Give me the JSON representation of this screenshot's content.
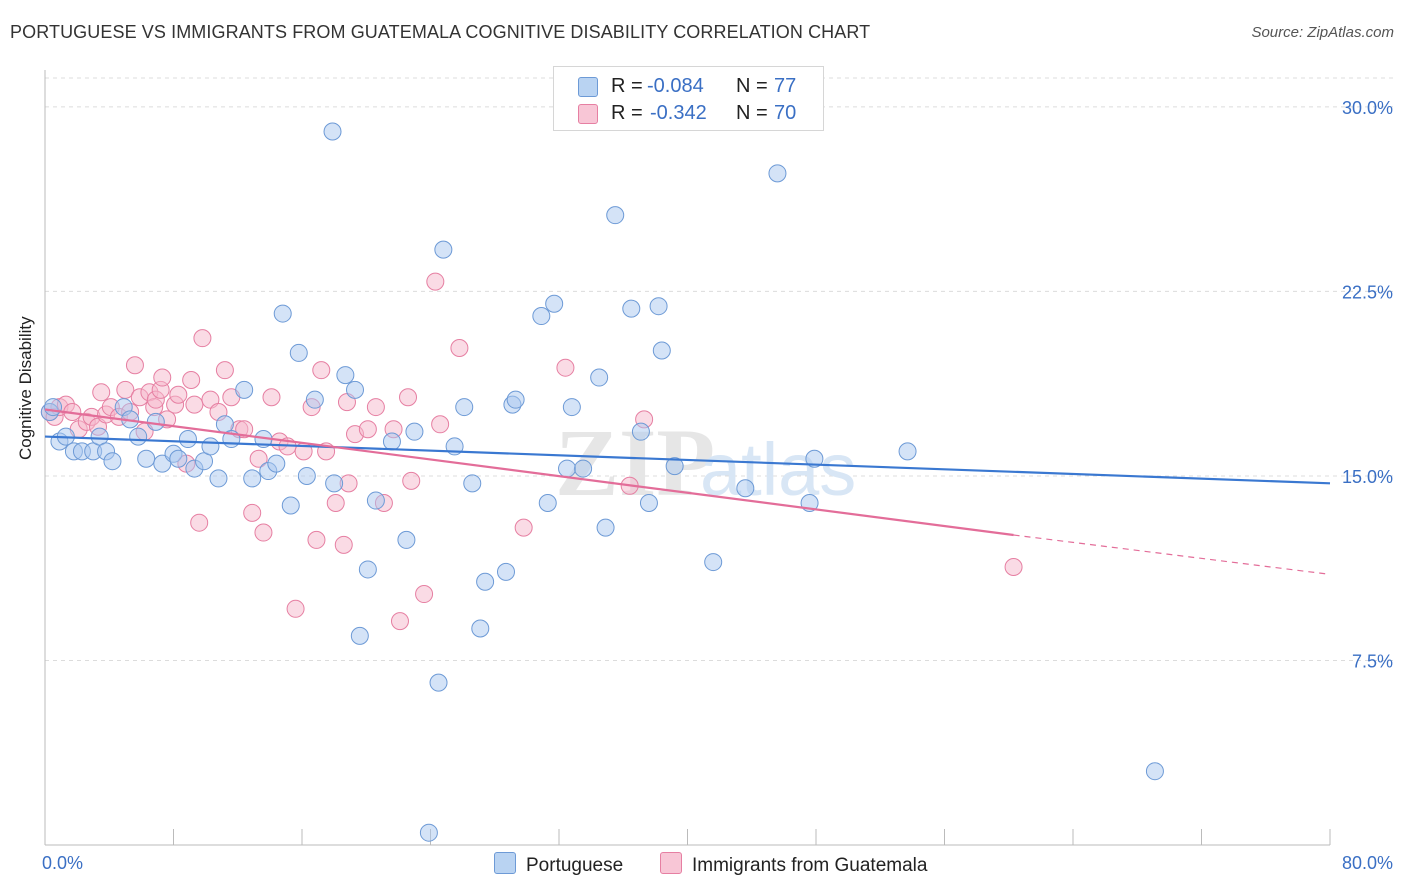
{
  "title": "PORTUGUESE VS IMMIGRANTS FROM GUATEMALA COGNITIVE DISABILITY CORRELATION CHART",
  "source": "Source: ZipAtlas.com",
  "watermark": {
    "zip": "ZIP",
    "atlas": "atlas"
  },
  "legend": {
    "rows": [
      {
        "r_label": "R =",
        "r_value": "-0.084",
        "n_label": "N =",
        "n_value": "77"
      },
      {
        "r_label": "R =",
        "r_value": "-0.342",
        "n_label": "N =",
        "n_value": "70"
      }
    ]
  },
  "bottom_legend": {
    "series1": "Portuguese",
    "series2": "Immigrants from Guatemala"
  },
  "colors": {
    "blue_fill": "#aac8f0",
    "blue_stroke": "#6d9ad6",
    "blue_line": "#3a78d1",
    "pink_fill": "#f6b8cc",
    "pink_stroke": "#e67fa2",
    "pink_line": "#e36d99",
    "grid": "#dcdcdc",
    "tick_text": "#3a6fc4"
  },
  "chart_data": {
    "type": "scatter",
    "title": "PORTUGUESE VS IMMIGRANTS FROM GUATEMALA COGNITIVE DISABILITY CORRELATION CHART",
    "xlabel": "",
    "ylabel": "Cognitive Disability",
    "xlim": [
      0,
      80
    ],
    "ylim": [
      0,
      31.5
    ],
    "x_tick_labels": [
      "0.0%",
      "80.0%"
    ],
    "y_ticks": [
      7.5,
      15.0,
      22.5,
      30.0
    ],
    "y_tick_labels": [
      "7.5%",
      "15.0%",
      "22.5%",
      "30.0%"
    ],
    "grid": true,
    "legend_position": "top-center",
    "series": [
      {
        "name": "Portuguese",
        "r": -0.084,
        "n": 77,
        "trend": {
          "x": [
            0,
            80
          ],
          "y": [
            16.6,
            14.7
          ]
        },
        "points": [
          [
            0.3,
            17.6
          ],
          [
            0.5,
            17.8
          ],
          [
            0.9,
            16.4
          ],
          [
            1.3,
            16.6
          ],
          [
            1.8,
            16.0
          ],
          [
            2.3,
            16.0
          ],
          [
            3.0,
            16.0
          ],
          [
            3.4,
            16.6
          ],
          [
            3.8,
            16.0
          ],
          [
            4.2,
            15.6
          ],
          [
            4.9,
            17.8
          ],
          [
            5.3,
            17.3
          ],
          [
            5.8,
            16.6
          ],
          [
            6.3,
            15.7
          ],
          [
            6.9,
            17.2
          ],
          [
            7.3,
            15.5
          ],
          [
            8.0,
            15.9
          ],
          [
            8.3,
            15.7
          ],
          [
            8.9,
            16.5
          ],
          [
            9.3,
            15.3
          ],
          [
            9.9,
            15.6
          ],
          [
            10.3,
            16.2
          ],
          [
            10.8,
            14.9
          ],
          [
            11.2,
            17.1
          ],
          [
            11.6,
            16.5
          ],
          [
            12.4,
            18.5
          ],
          [
            12.9,
            14.9
          ],
          [
            13.6,
            16.5
          ],
          [
            13.9,
            15.2
          ],
          [
            14.4,
            15.5
          ],
          [
            14.8,
            21.6
          ],
          [
            15.3,
            13.8
          ],
          [
            15.8,
            20.0
          ],
          [
            16.3,
            15.0
          ],
          [
            16.8,
            18.1
          ],
          [
            18.0,
            14.7
          ],
          [
            18.7,
            19.1
          ],
          [
            19.3,
            18.5
          ],
          [
            19.6,
            8.5
          ],
          [
            20.1,
            11.2
          ],
          [
            20.6,
            14.0
          ],
          [
            21.6,
            16.4
          ],
          [
            22.5,
            12.4
          ],
          [
            23.0,
            16.8
          ],
          [
            23.9,
            0.5
          ],
          [
            24.5,
            6.6
          ],
          [
            24.8,
            24.2
          ],
          [
            25.5,
            16.2
          ],
          [
            26.1,
            17.8
          ],
          [
            26.6,
            14.7
          ],
          [
            27.1,
            8.8
          ],
          [
            27.4,
            10.7
          ],
          [
            28.7,
            11.1
          ],
          [
            29.1,
            17.9
          ],
          [
            29.3,
            18.1
          ],
          [
            30.9,
            21.5
          ],
          [
            31.3,
            13.9
          ],
          [
            31.7,
            22.0
          ],
          [
            32.5,
            15.3
          ],
          [
            32.8,
            17.8
          ],
          [
            33.5,
            15.3
          ],
          [
            34.5,
            19.0
          ],
          [
            34.9,
            12.9
          ],
          [
            35.5,
            25.6
          ],
          [
            36.5,
            21.8
          ],
          [
            37.1,
            16.8
          ],
          [
            37.6,
            13.9
          ],
          [
            38.2,
            21.9
          ],
          [
            38.4,
            20.1
          ],
          [
            39.2,
            15.4
          ],
          [
            41.6,
            11.5
          ],
          [
            43.6,
            14.5
          ],
          [
            45.6,
            27.3
          ],
          [
            47.6,
            13.9
          ],
          [
            47.9,
            15.7
          ],
          [
            53.7,
            16.0
          ],
          [
            69.1,
            3.0
          ],
          [
            17.9,
            29.0
          ]
        ]
      },
      {
        "name": "Immigrants from Guatemala",
        "r": -0.342,
        "n": 70,
        "trend": {
          "x": [
            0,
            60.3,
            80
          ],
          "y": [
            17.7,
            12.6,
            11.0
          ],
          "dashed_from_x": 60.3
        },
        "points": [
          [
            0.3,
            17.6
          ],
          [
            0.6,
            17.4
          ],
          [
            0.9,
            17.8
          ],
          [
            1.3,
            17.9
          ],
          [
            1.7,
            17.6
          ],
          [
            2.1,
            16.9
          ],
          [
            2.6,
            17.2
          ],
          [
            2.9,
            17.4
          ],
          [
            3.3,
            17.0
          ],
          [
            3.5,
            18.4
          ],
          [
            3.8,
            17.5
          ],
          [
            4.1,
            17.8
          ],
          [
            4.6,
            17.4
          ],
          [
            5.0,
            18.5
          ],
          [
            5.3,
            17.6
          ],
          [
            5.6,
            19.5
          ],
          [
            5.9,
            18.2
          ],
          [
            6.2,
            16.8
          ],
          [
            6.5,
            18.4
          ],
          [
            6.8,
            17.8
          ],
          [
            6.9,
            18.1
          ],
          [
            7.2,
            18.5
          ],
          [
            7.3,
            19.0
          ],
          [
            7.6,
            17.3
          ],
          [
            8.1,
            17.9
          ],
          [
            8.3,
            18.3
          ],
          [
            8.8,
            15.5
          ],
          [
            9.1,
            18.9
          ],
          [
            9.3,
            17.9
          ],
          [
            9.6,
            13.1
          ],
          [
            9.8,
            20.6
          ],
          [
            10.3,
            18.1
          ],
          [
            10.8,
            17.6
          ],
          [
            11.2,
            19.3
          ],
          [
            11.6,
            18.2
          ],
          [
            12.1,
            16.9
          ],
          [
            12.4,
            16.9
          ],
          [
            12.9,
            13.5
          ],
          [
            13.3,
            15.7
          ],
          [
            13.6,
            12.7
          ],
          [
            14.1,
            18.2
          ],
          [
            14.6,
            16.4
          ],
          [
            15.1,
            16.2
          ],
          [
            15.6,
            9.6
          ],
          [
            16.1,
            16.0
          ],
          [
            16.6,
            17.8
          ],
          [
            16.9,
            12.4
          ],
          [
            17.2,
            19.3
          ],
          [
            17.5,
            16.0
          ],
          [
            18.1,
            13.9
          ],
          [
            18.6,
            12.2
          ],
          [
            18.9,
            14.7
          ],
          [
            19.3,
            16.7
          ],
          [
            20.1,
            16.9
          ],
          [
            20.6,
            17.8
          ],
          [
            21.1,
            13.9
          ],
          [
            21.7,
            16.9
          ],
          [
            22.1,
            9.1
          ],
          [
            22.6,
            18.2
          ],
          [
            22.8,
            14.8
          ],
          [
            23.6,
            10.2
          ],
          [
            24.3,
            22.9
          ],
          [
            24.6,
            17.1
          ],
          [
            25.8,
            20.2
          ],
          [
            29.8,
            12.9
          ],
          [
            32.4,
            19.4
          ],
          [
            36.4,
            14.6
          ],
          [
            37.3,
            17.3
          ],
          [
            60.3,
            11.3
          ],
          [
            18.8,
            18.0
          ]
        ]
      }
    ]
  }
}
